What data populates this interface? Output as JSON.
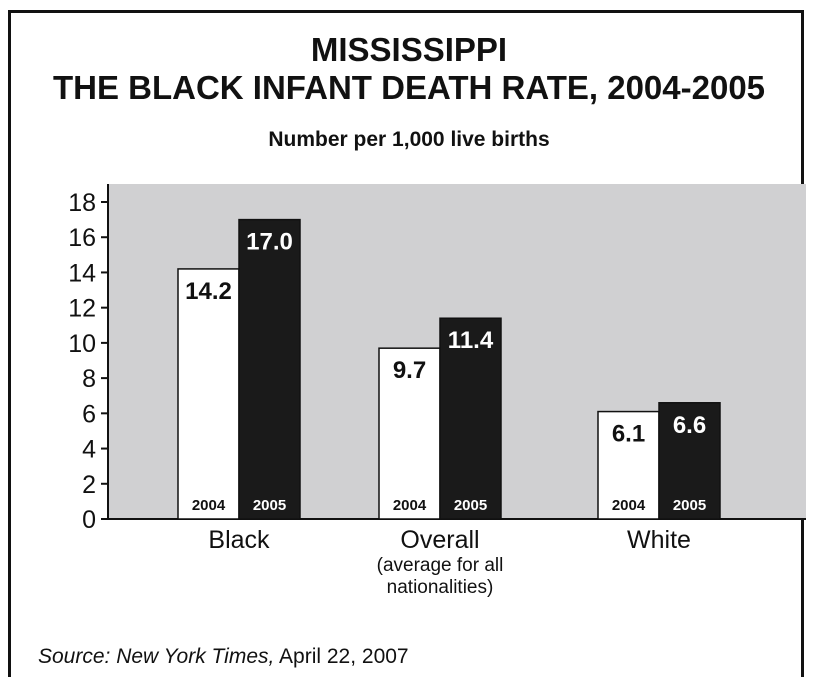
{
  "chart_data": {
    "type": "bar",
    "title_line1": "MISSISSIPPI",
    "title_line2": "THE BLACK INFANT DEATH RATE, 2004-2005",
    "subtitle": "Number per 1,000 live births",
    "categories": [
      "Black",
      "Overall",
      "White"
    ],
    "category_notes": [
      "",
      "(average for all nationalities)",
      ""
    ],
    "series": [
      {
        "name": "2004",
        "values": [
          14.2,
          9.7,
          6.1
        ],
        "labels": [
          "14.2",
          "9.7",
          "6.1"
        ],
        "color": "#ffffff"
      },
      {
        "name": "2005",
        "values": [
          17.0,
          11.4,
          6.6
        ],
        "labels": [
          "17.0",
          "11.4",
          "6.6"
        ],
        "color": "#1a1a1a"
      }
    ],
    "yticks": [
      "0",
      "2",
      "4",
      "6",
      "8",
      "10",
      "12",
      "14",
      "16",
      "18"
    ],
    "ylim": [
      0,
      18
    ],
    "plot_background": "#d0d0d2"
  },
  "source": {
    "italic": "Source: New York Times,",
    "rest": " April 22, 2007"
  }
}
